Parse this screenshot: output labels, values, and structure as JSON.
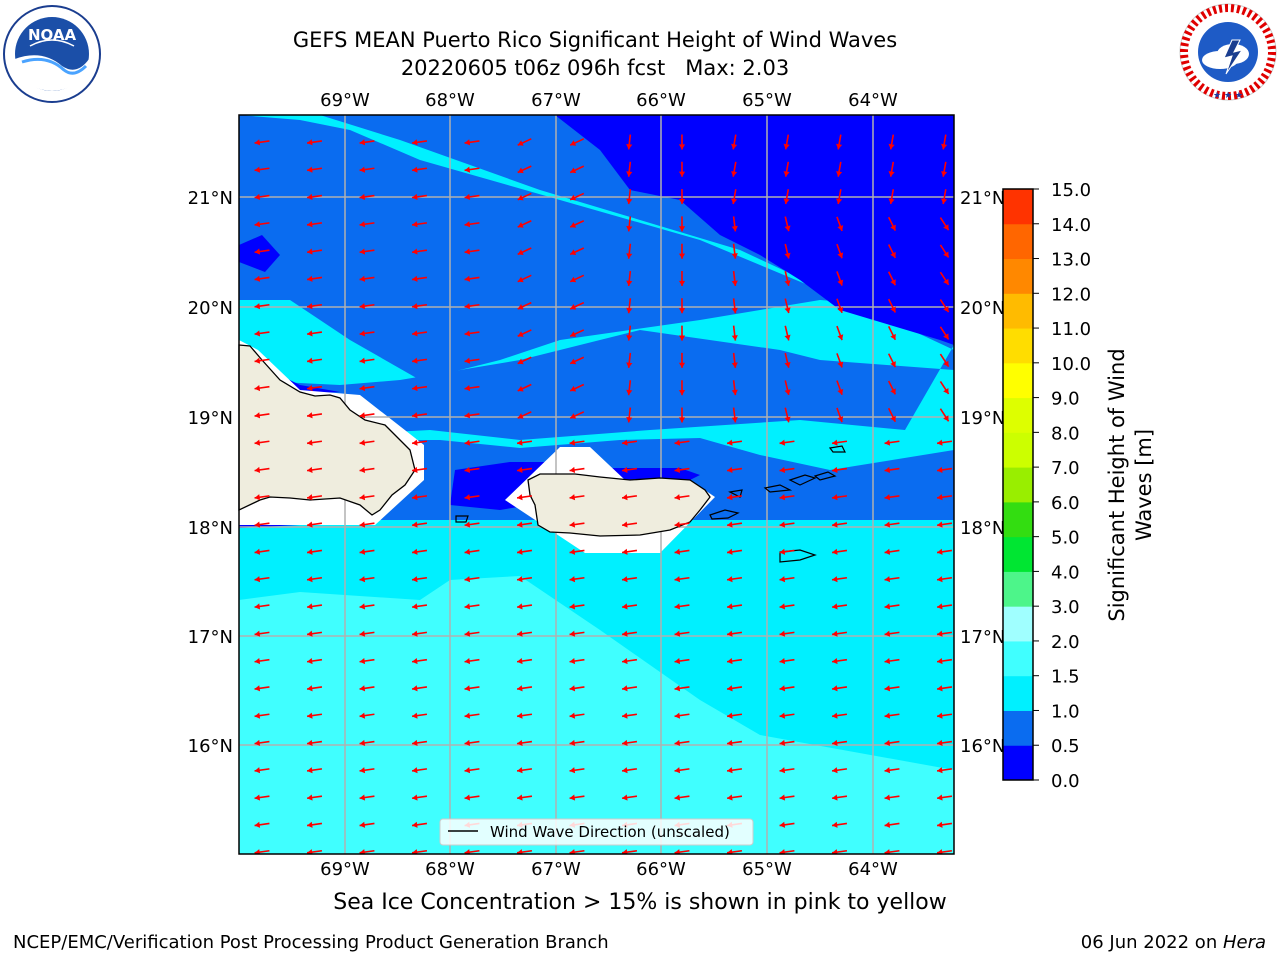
{
  "header": {
    "title_main": "GEFS MEAN Puerto Rico Significant Height of Wind Waves",
    "run_time": "20220605 t06z 096h fcst",
    "max_label": "Max: 2.03"
  },
  "map": {
    "lon_labels": [
      "69°W",
      "68°W",
      "67°W",
      "66°W",
      "65°W",
      "64°W"
    ],
    "lat_labels": [
      "21°N",
      "20°N",
      "19°N",
      "18°N",
      "17°N",
      "16°N"
    ],
    "legend_text": "Wind Wave Direction (unscaled)",
    "arrow_color": "#ff0000",
    "land_color": "#efedde"
  },
  "colorbar": {
    "label": "Significant Height of Wind Waves [m]",
    "ticks": [
      "0.0",
      "0.5",
      "1.0",
      "1.5",
      "2.0",
      "3.0",
      "4.0",
      "5.0",
      "6.0",
      "7.0",
      "8.0",
      "9.0",
      "10.0",
      "11.0",
      "12.0",
      "13.0",
      "14.0",
      "15.0"
    ],
    "colors": [
      "#0000ff",
      "#0a6cf0",
      "#00f0ff",
      "#40ffff",
      "#a0ffff",
      "#4df58a",
      "#00e632",
      "#33dd11",
      "#99ee00",
      "#ccff00",
      "#ddff00",
      "#ffff00",
      "#ffdd00",
      "#ffbb00",
      "#ff8800",
      "#ff6600",
      "#ff3300",
      "#ff0000"
    ]
  },
  "logos": {
    "noaa_text": "NOAA",
    "noaa_ring": "NATIONAL OCEANIC AND ATMOSPHERIC ADMINISTRATION · U.S. DEPARTMENT OF COMMERCE",
    "nws_ring": "NATIONAL WEATHER SERVICE"
  },
  "footer": {
    "note": "Sea Ice Concentration > 15% is shown in pink to yellow",
    "left": "NCEP/EMC/Verification Post Processing Product Generation Branch",
    "right_date": "06 Jun 2022 on ",
    "right_host": "Hera"
  }
}
